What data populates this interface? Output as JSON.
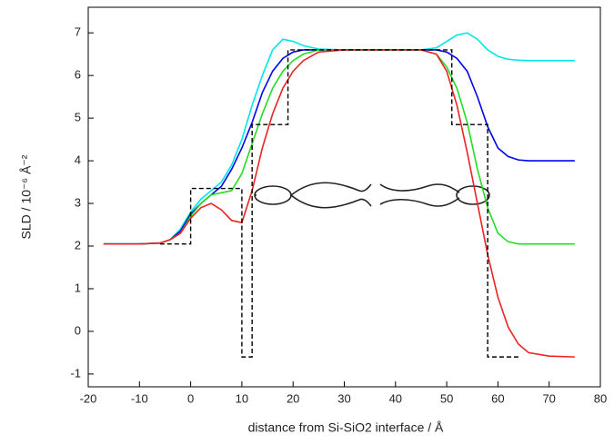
{
  "chart_data": {
    "type": "line",
    "x_label": "distance from Si-SiO2 interface / Å",
    "y_label": "SLD / 10⁻⁶ Å⁻²",
    "xlim": [
      -20,
      80
    ],
    "ylim": [
      -1.3,
      7.6
    ],
    "xticks": [
      -20,
      -10,
      0,
      10,
      20,
      30,
      40,
      50,
      60,
      70,
      80
    ],
    "yticks": [
      -1,
      0,
      1,
      2,
      3,
      4,
      5,
      6,
      7
    ],
    "x": [
      -17,
      -10,
      -6,
      -4,
      -2,
      0,
      2,
      4,
      6,
      8,
      10,
      12,
      14,
      16,
      18,
      20,
      22,
      25,
      30,
      35,
      40,
      45,
      48,
      50,
      52,
      54,
      56,
      58,
      60,
      62,
      64,
      66,
      70,
      75
    ],
    "series": [
      {
        "color": "#00e5e5",
        "values": [
          2.05,
          2.05,
          2.07,
          2.15,
          2.4,
          2.8,
          3.1,
          3.3,
          3.5,
          3.9,
          4.5,
          5.3,
          6.0,
          6.6,
          6.85,
          6.8,
          6.7,
          6.62,
          6.6,
          6.6,
          6.6,
          6.6,
          6.65,
          6.8,
          6.95,
          7.0,
          6.85,
          6.6,
          6.45,
          6.38,
          6.36,
          6.35,
          6.35,
          6.35
        ]
      },
      {
        "color": "#0000ee",
        "values": [
          2.05,
          2.05,
          2.07,
          2.15,
          2.35,
          2.75,
          3.0,
          3.2,
          3.4,
          3.8,
          4.3,
          4.9,
          5.6,
          6.1,
          6.4,
          6.55,
          6.6,
          6.6,
          6.6,
          6.6,
          6.6,
          6.6,
          6.6,
          6.55,
          6.4,
          6.1,
          5.5,
          4.8,
          4.3,
          4.1,
          4.02,
          4.0,
          4.0,
          4.0
        ]
      },
      {
        "color": "#22dd22",
        "values": [
          2.05,
          2.05,
          2.07,
          2.15,
          2.3,
          2.7,
          3.0,
          3.2,
          3.25,
          3.3,
          3.7,
          4.4,
          5.1,
          5.7,
          6.1,
          6.35,
          6.5,
          6.6,
          6.6,
          6.6,
          6.6,
          6.6,
          6.5,
          6.2,
          5.7,
          4.9,
          3.8,
          2.9,
          2.3,
          2.1,
          2.05,
          2.05,
          2.05,
          2.05
        ]
      },
      {
        "color": "#ee2222",
        "values": [
          2.05,
          2.05,
          2.07,
          2.15,
          2.3,
          2.65,
          2.9,
          3.0,
          2.85,
          2.6,
          2.55,
          3.3,
          4.3,
          5.1,
          5.7,
          6.1,
          6.35,
          6.55,
          6.6,
          6.6,
          6.6,
          6.6,
          6.5,
          6.1,
          5.3,
          4.2,
          3.0,
          1.8,
          0.8,
          0.1,
          -0.3,
          -0.5,
          -0.58,
          -0.6
        ]
      },
      {
        "color": "#000000",
        "dashed": true,
        "x": [
          -6,
          0,
          0,
          10,
          10,
          12,
          12,
          19,
          19,
          51,
          51,
          58,
          58,
          64
        ],
        "values": [
          2.05,
          2.05,
          3.35,
          3.35,
          -0.6,
          -0.6,
          4.85,
          4.85,
          6.6,
          6.6,
          4.85,
          4.85,
          -0.6,
          -0.6
        ]
      }
    ]
  }
}
